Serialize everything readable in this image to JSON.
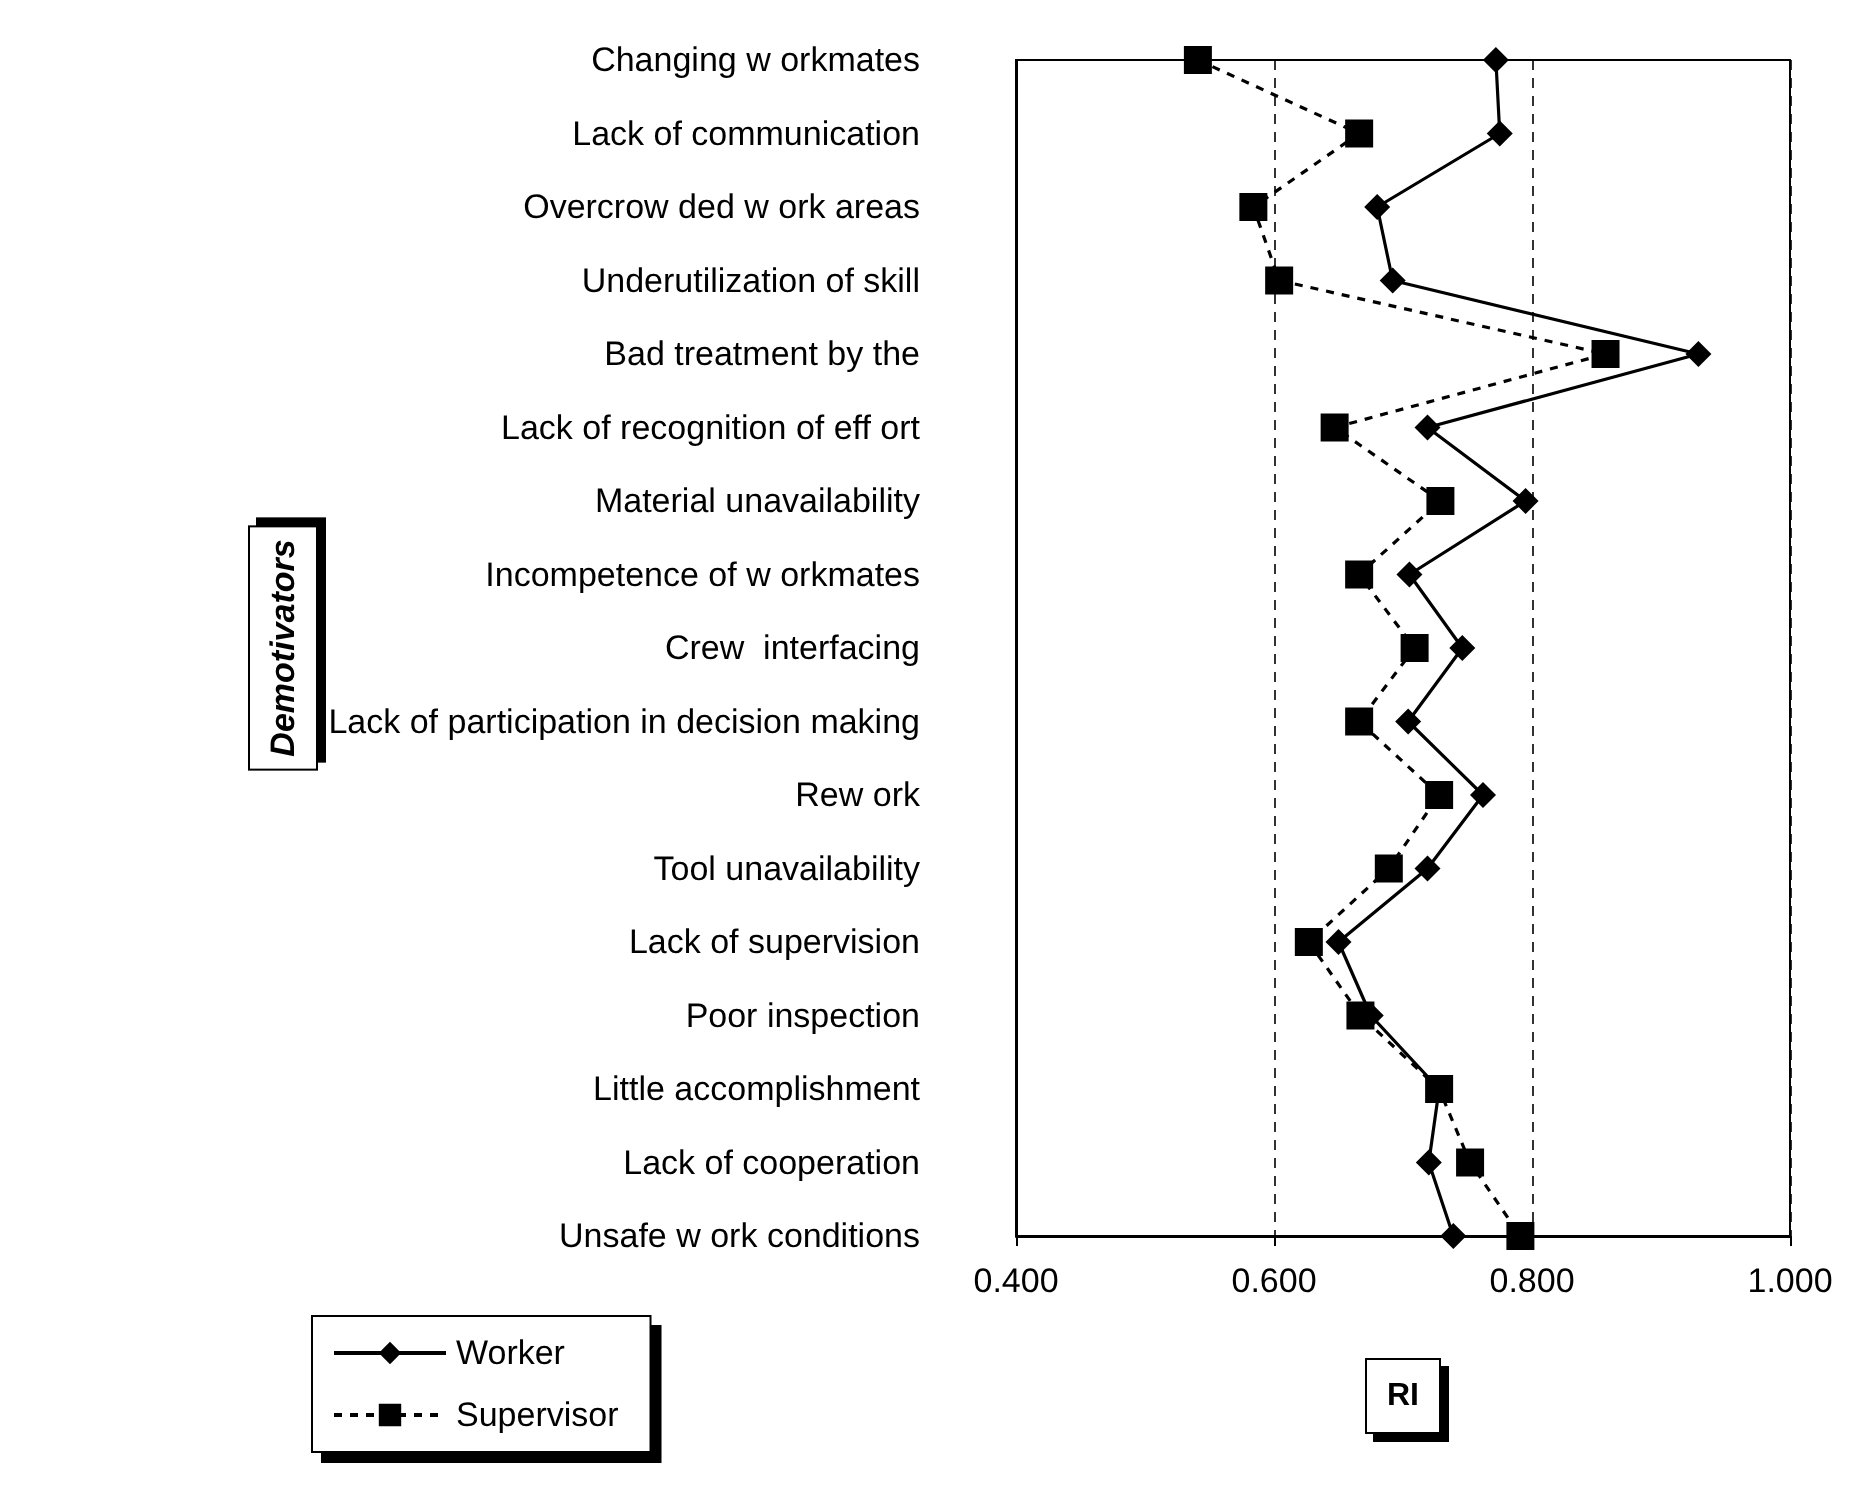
{
  "chart_data": {
    "type": "line",
    "orientation": "horizontal",
    "xlabel": "RI",
    "ylabel": "Demotivators",
    "categories": [
      "Changing w orkmates",
      "Lack of communication",
      "Overcrow ded w ork areas",
      "Underutilization of skill",
      "Bad treatment by the",
      "Lack of recognition of eff ort",
      "Material unavailability",
      "Incompetence of w orkmates",
      "Crew  interfacing",
      "Lack of participation in decision making",
      "Rew ork",
      "Tool unavailability",
      "Lack of supervision",
      "Poor inspection",
      "Little accomplishment",
      "Lack of cooperation",
      "Unsafe w ork conditions"
    ],
    "series": [
      {
        "name": "Worker",
        "color": "#000000",
        "marker": "diamond",
        "line_style": "solid",
        "values": [
          0.772,
          0.775,
          0.68,
          0.692,
          0.929,
          0.719,
          0.795,
          0.705,
          0.746,
          0.704,
          0.762,
          0.719,
          0.65,
          0.675,
          0.728,
          0.72,
          0.739
        ]
      },
      {
        "name": "Supervisor",
        "color": "#000000",
        "marker": "square",
        "line_style": "dashed",
        "values": [
          0.541,
          0.666,
          0.584,
          0.604,
          0.857,
          0.647,
          0.729,
          0.666,
          0.709,
          0.666,
          0.728,
          0.689,
          0.627,
          0.667,
          0.728,
          0.752,
          0.791
        ]
      }
    ],
    "xlim": [
      0.4,
      1.0
    ],
    "xticks": [
      {
        "value": 0.4,
        "label": "0.400"
      },
      {
        "value": 0.6,
        "label": "0.600"
      },
      {
        "value": 0.8,
        "label": "0.800"
      },
      {
        "value": 1.0,
        "label": "1.000"
      }
    ],
    "grid": "x",
    "legend": "bottom left"
  }
}
